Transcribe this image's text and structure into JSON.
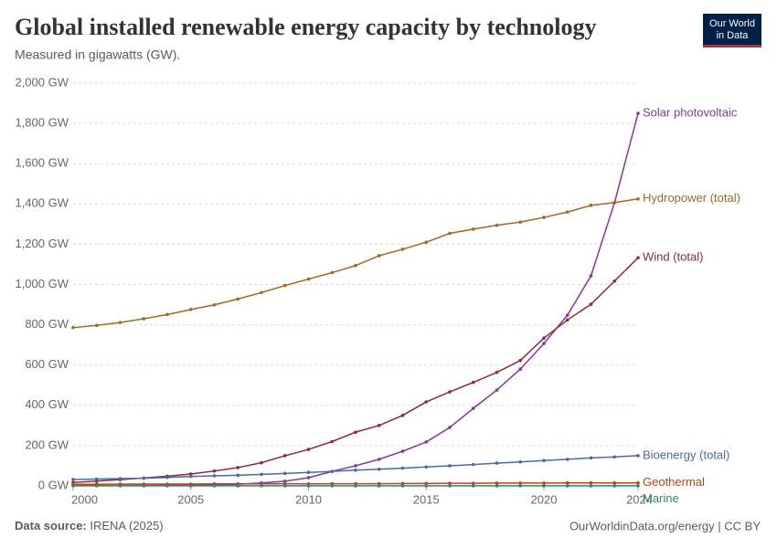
{
  "header": {
    "title": "Global installed renewable energy capacity by technology",
    "subtitle": "Measured in gigawatts (GW).",
    "logo": [
      "Our World",
      "in Data"
    ]
  },
  "chart_data": {
    "type": "line",
    "x": [
      2000,
      2001,
      2002,
      2003,
      2004,
      2005,
      2006,
      2007,
      2008,
      2009,
      2010,
      2011,
      2012,
      2013,
      2014,
      2015,
      2016,
      2017,
      2018,
      2019,
      2020,
      2021,
      2022,
      2023,
      2024
    ],
    "xlim": [
      2000,
      2024
    ],
    "xticks": [
      2000,
      2005,
      2010,
      2015,
      2020,
      2024
    ],
    "ylim": [
      0,
      2000
    ],
    "yticks": [
      {
        "value": 0,
        "label": "0 GW"
      },
      {
        "value": 200,
        "label": "200 GW"
      },
      {
        "value": 400,
        "label": "400 GW"
      },
      {
        "value": 600,
        "label": "600 GW"
      },
      {
        "value": 800,
        "label": "800 GW"
      },
      {
        "value": 1000,
        "label": "1,000 GW"
      },
      {
        "value": 1200,
        "label": "1,200 GW"
      },
      {
        "value": 1400,
        "label": "1,400 GW"
      },
      {
        "value": 1600,
        "label": "1,600 GW"
      },
      {
        "value": 1800,
        "label": "1,800 GW"
      },
      {
        "value": 2000,
        "label": "2,000 GW"
      }
    ],
    "grid": true,
    "series": [
      {
        "name": "Solar photovoltaic",
        "color": "#7e3b98",
        "values": [
          1,
          1,
          2,
          2,
          3,
          5,
          6,
          8,
          15,
          23,
          41,
          72,
          100,
          132,
          172,
          218,
          290,
          385,
          476,
          580,
          707,
          848,
          1043,
          1406,
          1850
        ]
      },
      {
        "name": "Hydropower (total)",
        "color": "#9a6a2c",
        "values": [
          786,
          797,
          811,
          830,
          851,
          876,
          899,
          928,
          960,
          995,
          1027,
          1059,
          1094,
          1143,
          1175,
          1210,
          1254,
          1275,
          1294,
          1310,
          1333,
          1360,
          1393,
          1407,
          1425
        ]
      },
      {
        "name": "Wind (total)",
        "color": "#8b2a3a",
        "values": [
          17,
          24,
          31,
          39,
          48,
          59,
          74,
          91,
          115,
          150,
          181,
          220,
          267,
          300,
          350,
          417,
          467,
          514,
          564,
          623,
          734,
          824,
          902,
          1017,
          1133
        ]
      },
      {
        "name": "Bioenergy (total)",
        "color": "#4c6a9c",
        "values": [
          32,
          34,
          36,
          38,
          42,
          47,
          50,
          53,
          57,
          62,
          67,
          72,
          78,
          83,
          88,
          94,
          100,
          106,
          113,
          119,
          126,
          132,
          139,
          144,
          150
        ]
      },
      {
        "name": "Geothermal",
        "color": "#c0421b",
        "values": [
          8,
          8,
          9,
          9,
          9,
          9,
          10,
          10,
          10,
          11,
          10,
          11,
          11,
          11,
          12,
          12,
          13,
          13,
          14,
          14,
          14,
          15,
          15,
          15,
          15
        ]
      },
      {
        "name": "Marine",
        "color": "#2a8a6e",
        "values": [
          0.3,
          0.3,
          0.3,
          0.3,
          0.3,
          0.3,
          0.3,
          0.3,
          0.3,
          0.3,
          0.3,
          0.5,
          0.5,
          0.5,
          0.5,
          0.5,
          0.5,
          0.5,
          0.5,
          0.5,
          0.5,
          0.5,
          0.5,
          0.5,
          0.5
        ]
      }
    ]
  },
  "footer": {
    "source_label": "Data source:",
    "source": "IRENA (2025)",
    "credit": "OurWorldinData.org/energy | CC BY"
  }
}
